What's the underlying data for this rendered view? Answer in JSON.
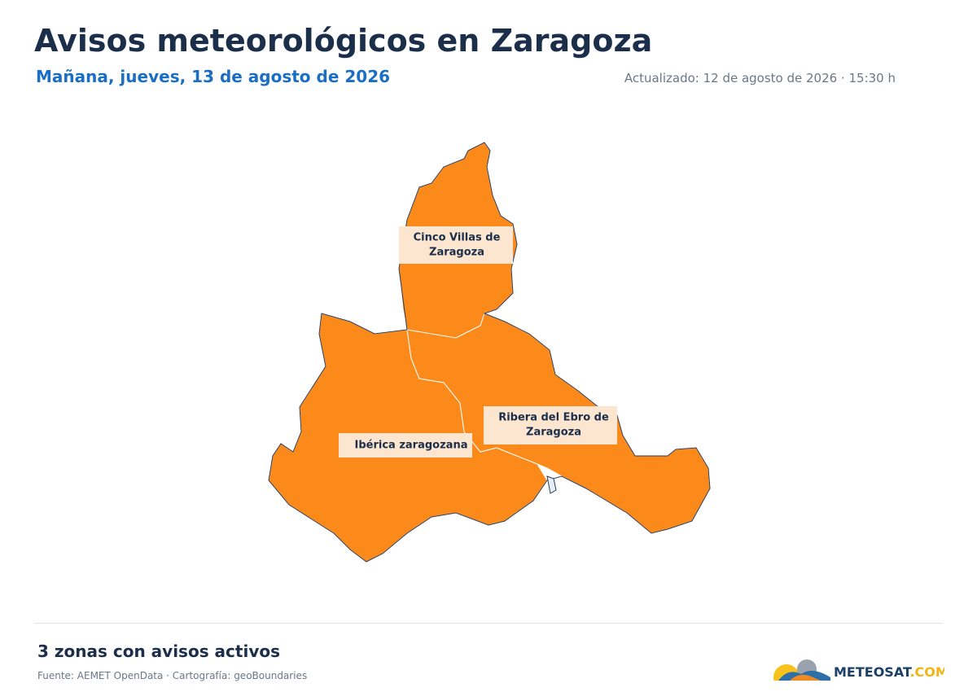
{
  "header": {
    "title": "Avisos meteorológicos en Zaragoza",
    "subtitle": "Mañana, jueves, 13 de agosto de 2026",
    "updated": "Actualizado: 12 de agosto de 2026 · 15:30 h"
  },
  "map": {
    "zones": [
      {
        "label_lines": [
          "Cinco Villas de",
          "Zaragoza"
        ]
      },
      {
        "label_lines": [
          "Ibérica zaragozana"
        ]
      },
      {
        "label_lines": [
          "Ribera del Ebro de",
          "Zaragoza"
        ]
      }
    ]
  },
  "footer": {
    "summary": "3 zonas con avisos activos",
    "source": "Fuente: AEMET OpenData · Cartografía: geoBoundaries",
    "logo": {
      "main": "METEOSAT",
      "suffix": ".COM"
    }
  }
}
